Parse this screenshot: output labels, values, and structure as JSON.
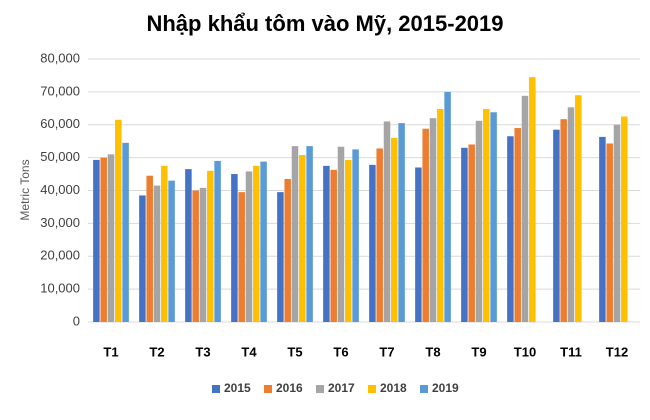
{
  "chart_data": {
    "type": "bar",
    "title": "Nhập khẩu tôm vào Mỹ, 2015-2019",
    "y_label": "Metric Tons",
    "categories": [
      "T1",
      "T2",
      "T3",
      "T4",
      "T5",
      "T6",
      "T7",
      "T8",
      "T9",
      "T10",
      "T11",
      "T12"
    ],
    "series": [
      {
        "name": "2015",
        "color": "#4472c4",
        "values": [
          49300,
          38500,
          46500,
          45000,
          39500,
          47500,
          47800,
          47000,
          53000,
          56500,
          58500,
          56300
        ]
      },
      {
        "name": "2016",
        "color": "#ed7d31",
        "values": [
          50000,
          44500,
          40000,
          39500,
          43500,
          46300,
          52800,
          58800,
          54000,
          59000,
          61700,
          54300
        ]
      },
      {
        "name": "2017",
        "color": "#a5a5a5",
        "values": [
          51000,
          41500,
          40800,
          45800,
          53500,
          53300,
          61000,
          62000,
          61200,
          68800,
          65300,
          60000
        ]
      },
      {
        "name": "2018",
        "color": "#ffc000",
        "values": [
          61500,
          47500,
          46000,
          47500,
          50800,
          49300,
          56000,
          64800,
          64800,
          74500,
          69000,
          62500
        ]
      },
      {
        "name": "2019",
        "color": "#5b9bd5",
        "values": [
          54500,
          43000,
          49000,
          48800,
          53500,
          52500,
          60500,
          70000,
          63800,
          null,
          null,
          null
        ]
      }
    ],
    "ylim": [
      0,
      80000
    ],
    "yticks": [
      0,
      {
        "value": 10000,
        "label": "10,000"
      },
      {
        "value": 20000,
        "label": "20,000"
      },
      {
        "value": 30000,
        "label": "30,000"
      },
      {
        "value": 40000,
        "label": "40,000"
      },
      {
        "value": 50000,
        "label": "50,000"
      },
      {
        "value": 60000,
        "label": "60,000"
      },
      {
        "value": 70000,
        "label": "70,000"
      },
      {
        "value": 80000,
        "label": "80,000"
      }
    ],
    "grid": true,
    "legend": "bottom"
  }
}
